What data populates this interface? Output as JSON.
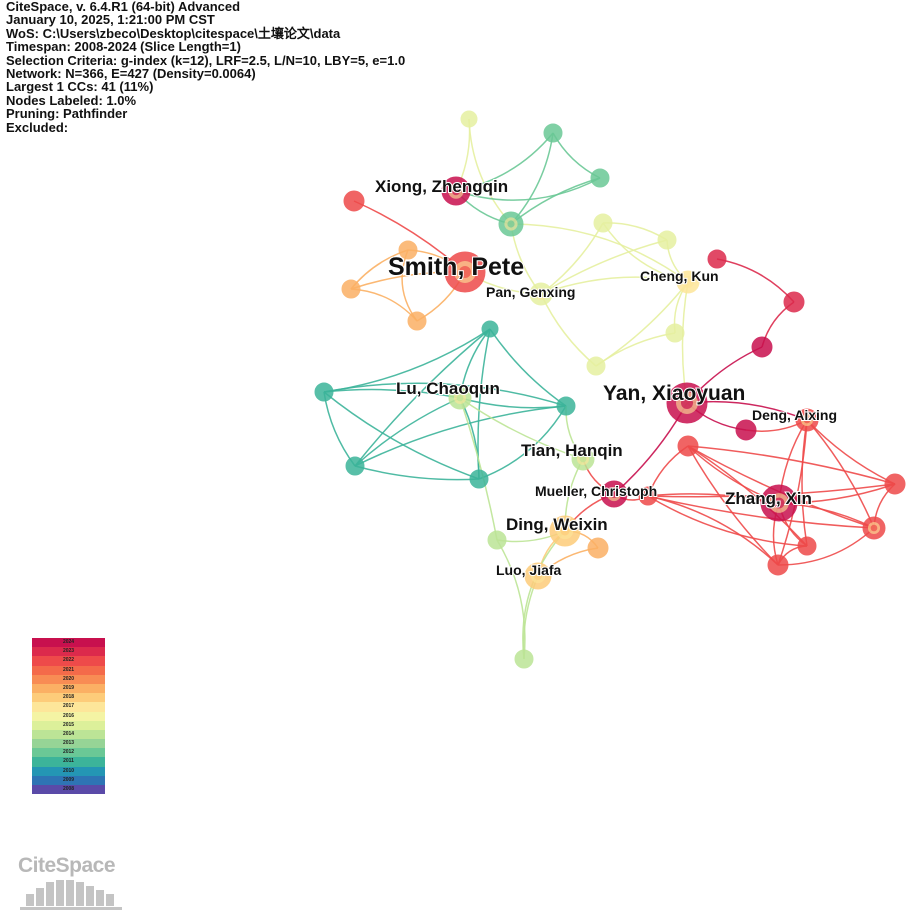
{
  "info_lines": [
    "CiteSpace, v. 6.4.R1 (64-bit) Advanced",
    "January 10, 2025, 1:21:00 PM CST",
    "WoS: C:\\Users\\zbeco\\Desktop\\citespace\\土壤论文\\data",
    "Timespan: 2008-2024 (Slice Length=1)",
    "Selection Criteria: g-index (k=12), LRF=2.5, L/N=10, LBY=5, e=1.0",
    "Network: N=366, E=427 (Density=0.0064)",
    "Largest 1 CCs: 41 (11%)",
    "Nodes Labeled: 1.0%",
    "Pruning: Pathfinder",
    "Excluded:"
  ],
  "node_labels": {
    "smith_pete": "Smith, Pete",
    "xiong_zhengqin": "Xiong, Zhengqin",
    "pan_genxing": "Pan, Genxing",
    "cheng_kun": "Cheng, Kun",
    "yan_xiaoyuan": "Yan, Xiaoyuan",
    "lu_chaoqun": "Lu, Chaoqun",
    "deng_aixing": "Deng, Aixing",
    "tian_hanqin": "Tian, Hanqin",
    "mueller_christoph": "Mueller, Christoph",
    "zhang_xin": "Zhang, Xin",
    "ding_weixin": "Ding, Weixin",
    "luo_jiafa": "Luo, Jiafa"
  },
  "legend": {
    "years": [
      "2024",
      "2023",
      "2022",
      "2021",
      "2020",
      "2019",
      "2018",
      "2017",
      "2016",
      "2015",
      "2014",
      "2013",
      "2012",
      "2011",
      "2010",
      "2009",
      "2008"
    ],
    "colors": [
      "#c8104e",
      "#dc2a4c",
      "#ee4a4a",
      "#f46a4a",
      "#f88c54",
      "#fbb064",
      "#fdcc7a",
      "#fde69a",
      "#f4f4a4",
      "#dcf09a",
      "#bce496",
      "#96d496",
      "#6ac896",
      "#3cb49a",
      "#2496b4",
      "#2e74b4",
      "#5a4aa8"
    ]
  },
  "logo": {
    "text": "CiteSpace"
  }
}
